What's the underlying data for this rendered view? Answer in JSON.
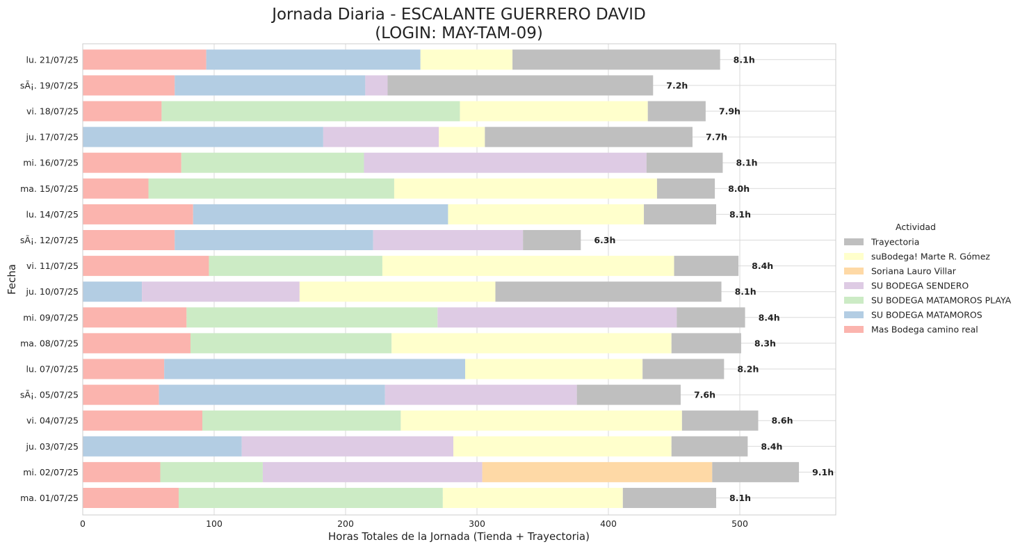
{
  "chart_data": {
    "type": "bar",
    "orientation": "horizontal",
    "stacked": true,
    "title": "Jornada Diaria - ESCALANTE GUERRERO DAVID",
    "subtitle": "(LOGIN: MAY-TAM-09)",
    "xlabel": "Horas Totales de la Jornada (Tienda + Trayectoria)",
    "ylabel": "Fecha",
    "xlim": [
      0,
      573
    ],
    "xticks": [
      "0",
      "100",
      "200",
      "300",
      "400",
      "500"
    ],
    "grid": true,
    "legend_title": "Actividad",
    "legend_position": "center-right",
    "categories": [
      "ma. 01/07/25",
      "mi. 02/07/25",
      "ju. 03/07/25",
      "vi. 04/07/25",
      "sÃ¡. 05/07/25",
      "lu. 07/07/25",
      "ma. 08/07/25",
      "mi. 09/07/25",
      "ju. 10/07/25",
      "vi. 11/07/25",
      "sÃ¡. 12/07/25",
      "lu. 14/07/25",
      "ma. 15/07/25",
      "mi. 16/07/25",
      "ju. 17/07/25",
      "vi. 18/07/25",
      "sÃ¡. 19/07/25",
      "lu. 21/07/25"
    ],
    "totals": [
      "8.1h",
      "9.1h",
      "8.4h",
      "8.6h",
      "7.6h",
      "8.2h",
      "8.3h",
      "8.4h",
      "8.1h",
      "8.4h",
      "6.3h",
      "8.1h",
      "8.0h",
      "8.1h",
      "7.7h",
      "7.9h",
      "7.2h",
      "8.1h"
    ],
    "series": [
      {
        "name": "Mas Bodega camino real",
        "color": "#fbb4ae",
        "values": [
          73,
          59,
          0,
          91,
          58,
          62,
          82,
          79,
          0,
          96,
          70,
          84,
          50,
          75,
          0,
          60,
          70,
          94
        ]
      },
      {
        "name": "SU BODEGA MATAMOROS",
        "color": "#b3cde3",
        "values": [
          0,
          0,
          121,
          0,
          172,
          229,
          0,
          0,
          45,
          0,
          151,
          194,
          0,
          0,
          183,
          0,
          145,
          163
        ]
      },
      {
        "name": "SU BODEGA MATAMOROS PLAYA",
        "color": "#ccebc5",
        "values": [
          201,
          78,
          0,
          151,
          0,
          0,
          153,
          191,
          0,
          132,
          0,
          0,
          187,
          139,
          0,
          227,
          0,
          0
        ]
      },
      {
        "name": "SU BODEGA SENDERO",
        "color": "#decbe4",
        "values": [
          0,
          167,
          161,
          0,
          146,
          0,
          0,
          182,
          120,
          0,
          114,
          0,
          0,
          215,
          88,
          0,
          17,
          0
        ]
      },
      {
        "name": "Soriana Lauro Villar",
        "color": "#fed9a6",
        "values": [
          0,
          175,
          0,
          0,
          0,
          0,
          0,
          0,
          0,
          0,
          0,
          0,
          0,
          0,
          0,
          0,
          0,
          0
        ]
      },
      {
        "name": "suBodega! Marte R. Gómez",
        "color": "#ffffcc",
        "values": [
          137,
          0,
          166,
          214,
          0,
          135,
          213,
          0,
          149,
          222,
          0,
          149,
          200,
          0,
          35,
          143,
          0,
          70
        ]
      },
      {
        "name": "Trayectoria",
        "color": "#bfbfbf",
        "values": [
          71,
          66,
          58,
          58,
          79,
          62,
          53,
          52,
          172,
          49,
          44,
          55,
          44,
          58,
          158,
          44,
          202,
          158
        ]
      }
    ]
  }
}
